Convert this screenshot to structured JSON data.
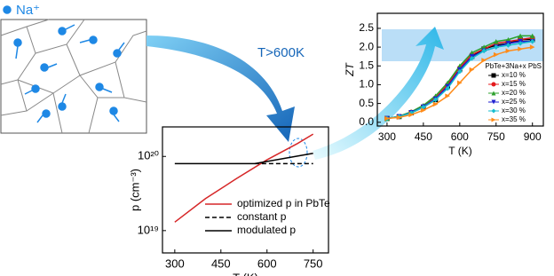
{
  "legend_label": "Na⁺",
  "annotation": "T>600K",
  "chart_data": [
    {
      "type": "line",
      "xlabel": "T (K)",
      "ylabel": "p (cm⁻³)",
      "xlim": [
        260,
        800
      ],
      "xticks": [
        300,
        450,
        600,
        750
      ],
      "ylim": [
        5e+18,
        2.5e+20
      ],
      "log_y": true,
      "yticks": [
        {
          "value": 1e+19,
          "label": "10¹⁹"
        },
        {
          "value": 1e+20,
          "label": "10²⁰"
        }
      ],
      "legend_position": "lower right",
      "series": [
        {
          "name": "optimized p in PbTe",
          "color": "#d62728",
          "style": "solid",
          "x": [
            300,
            400,
            500,
            600,
            700,
            750
          ],
          "values": [
            1.3e+19,
            2.7e+19,
            5e+19,
            9e+19,
            1.5e+20,
            2e+20
          ]
        },
        {
          "name": "constant p",
          "color": "#000000",
          "style": "dashed",
          "x": [
            560,
            750
          ],
          "values": [
            8e+19,
            8e+19
          ]
        },
        {
          "name": "modulated p",
          "color": "#000000",
          "style": "solid",
          "x": [
            300,
            560,
            750
          ],
          "values": [
            8e+19,
            8e+19,
            1.1e+20
          ]
        }
      ]
    },
    {
      "type": "line",
      "xlabel": "T (K)",
      "ylabel": "ZT",
      "xlim": [
        260,
        945
      ],
      "xticks": [
        300,
        450,
        600,
        750,
        900
      ],
      "ylim": [
        -0.1,
        2.9
      ],
      "yticks": [
        {
          "value": 0,
          "label": "0.0"
        },
        {
          "value": 0.5,
          "label": "0.5"
        },
        {
          "value": 1,
          "label": "1.0"
        },
        {
          "value": 1.5,
          "label": "1.5"
        },
        {
          "value": 2,
          "label": "2.0"
        },
        {
          "value": 2.5,
          "label": "2.5"
        }
      ],
      "legend_title": "PbTe+3Na+x PbS",
      "legend_position": "right",
      "x": [
        300,
        350,
        400,
        450,
        500,
        550,
        600,
        650,
        700,
        750,
        800,
        850,
        900
      ],
      "series": [
        {
          "name": "x=10 %",
          "color": "#000000",
          "marker": "square",
          "values": [
            0.1,
            0.15,
            0.25,
            0.4,
            0.6,
            0.95,
            1.4,
            1.75,
            1.95,
            2.05,
            2.1,
            2.2,
            2.2
          ]
        },
        {
          "name": "x=15 %",
          "color": "#e41a1c",
          "marker": "circle",
          "values": [
            0.1,
            0.15,
            0.27,
            0.42,
            0.65,
            1.0,
            1.45,
            1.8,
            1.95,
            2.1,
            2.15,
            2.2,
            2.25
          ]
        },
        {
          "name": "x=20 %",
          "color": "#2ca02c",
          "marker": "triangle-up",
          "values": [
            0.1,
            0.16,
            0.28,
            0.45,
            0.7,
            1.05,
            1.5,
            1.85,
            2.0,
            2.15,
            2.2,
            2.3,
            2.3
          ]
        },
        {
          "name": "x=25 %",
          "color": "#1f1fd0",
          "marker": "triangle-down",
          "values": [
            0.1,
            0.15,
            0.26,
            0.41,
            0.62,
            0.95,
            1.4,
            1.75,
            1.9,
            2.0,
            2.1,
            2.15,
            2.15
          ]
        },
        {
          "name": "x=30 %",
          "color": "#17becf",
          "marker": "diamond",
          "values": [
            0.1,
            0.15,
            0.25,
            0.4,
            0.6,
            0.9,
            1.35,
            1.7,
            1.9,
            2.0,
            2.05,
            2.1,
            2.15
          ]
        },
        {
          "name": "x=35 %",
          "color": "#ff8c1a",
          "marker": "triangle-right",
          "values": [
            0.1,
            0.13,
            0.2,
            0.32,
            0.48,
            0.7,
            1.05,
            1.4,
            1.65,
            1.8,
            1.9,
            1.95,
            2.0
          ]
        }
      ]
    }
  ]
}
